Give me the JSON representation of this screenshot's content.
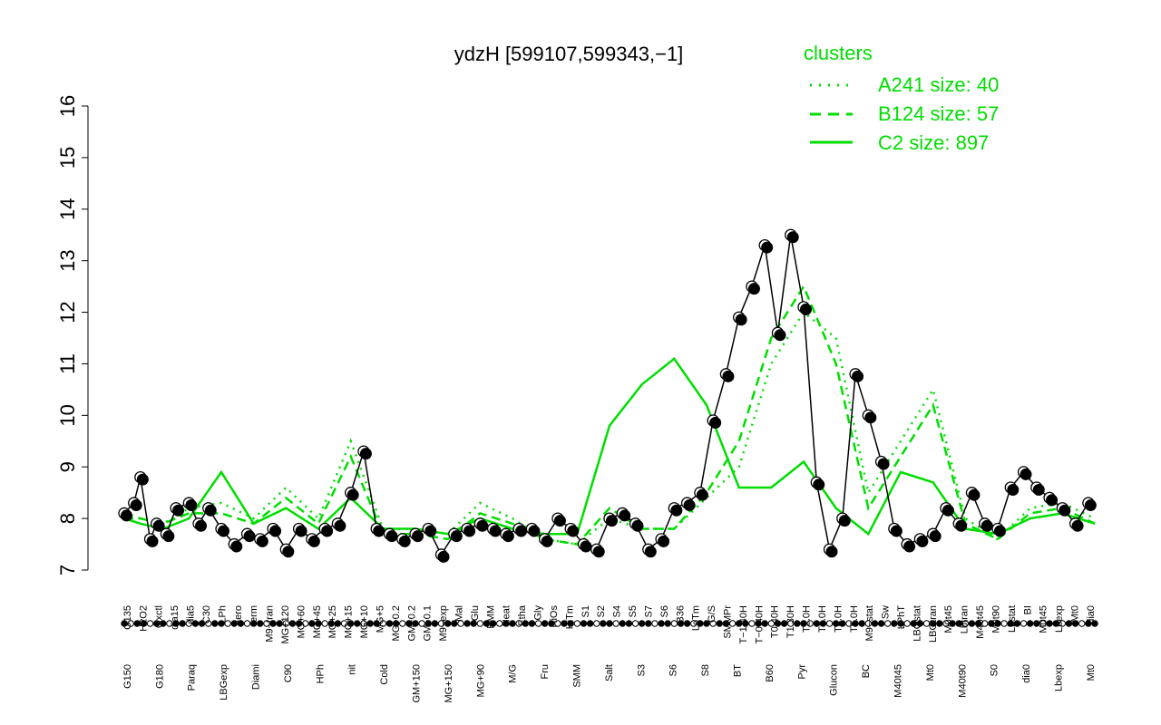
{
  "chart_data": {
    "type": "line",
    "title": "ydzH [599107,599343,−1]",
    "ylim": [
      7,
      16
    ],
    "yticks": [
      "7",
      "8",
      "9",
      "10",
      "11",
      "12",
      "13",
      "14",
      "15",
      "16"
    ],
    "yticks_values": [
      7,
      8,
      9,
      10,
      11,
      12,
      13,
      14,
      15,
      16
    ],
    "legend": {
      "title": "clusters",
      "placement": "top-right",
      "entries": [
        "A241 size: 40",
        "B124 size: 57",
        "C2 size: 897"
      ],
      "color": "#00dd00"
    },
    "categories_upper": [
      "G135",
      "H2O2",
      "Oxctl",
      "dia15",
      "dia5",
      "C30",
      "LPh",
      "aero",
      "ferm",
      "M9−tran",
      "MG+120",
      "MG+60",
      "MG+45",
      "MG+25",
      "MG+15",
      "MG+10",
      "MG+5",
      "MG−0.2",
      "GM−0.2",
      "GM−0.1",
      "M9−exp",
      "Mal",
      "Glu",
      "BMM",
      "Heat",
      "Etha",
      "Gly",
      "HiOs",
      "HiTm",
      "S1",
      "S2",
      "S4",
      "S5",
      "S7",
      "S6",
      "B36",
      "LoTm",
      "G/S",
      "SMMPr",
      "T−1.40H",
      "T−0.40H",
      "T0.40H",
      "T1.30H",
      "T2.0H",
      "T3.0H",
      "T4.0H",
      "T5.0H",
      "M9−stat",
      "Sw",
      "LPhT",
      "LBGstat",
      "LBGtran",
      "M0t45",
      "Lbtran",
      "M40t45",
      "M0t90",
      "Lbstat",
      "BI",
      "M0t45",
      "Lbexp",
      "Mt0",
      "dia0"
    ],
    "categories_lower": [
      "G150",
      "G180",
      "Paraq",
      "LBGexp",
      "Diami",
      "C90",
      "HPh",
      "nit",
      "Cold",
      "GM+150",
      "MG+150",
      "MG+90",
      "M/G",
      "Fru",
      "SMM",
      "Salt",
      "S3",
      "S6",
      "S8",
      "BT",
      "B60",
      "Pyr",
      "Glucon",
      "BC",
      "M40t45",
      "Mt0",
      "M40t90",
      "S0",
      "dia0",
      "Lbexp",
      "Mt0"
    ],
    "series": [
      {
        "name": "A241 size: 40",
        "style": "dotted",
        "x": [
          0,
          5,
          12,
          20,
          30,
          40,
          50,
          60,
          70,
          80,
          90,
          100,
          110,
          120,
          130,
          140,
          150,
          160,
          170,
          180,
          190,
          200,
          210,
          220,
          230,
          240,
          250,
          260,
          270,
          280,
          290,
          300
        ],
        "values": [
          8.1,
          8.0,
          7.9,
          8.2,
          8.3,
          8.0,
          8.6,
          8.0,
          9.5,
          7.8,
          7.8,
          7.7,
          8.3,
          8.0,
          7.6,
          7.5,
          8.0,
          7.8,
          7.8,
          8.4,
          9.0,
          11.0,
          12.0,
          11.5,
          8.5,
          9.5,
          10.5,
          8.0,
          7.6,
          8.2,
          8.3,
          8.0
        ]
      },
      {
        "name": "B124 size: 57",
        "style": "dashed",
        "x": [
          0,
          5,
          12,
          20,
          30,
          40,
          50,
          60,
          70,
          80,
          90,
          100,
          110,
          120,
          130,
          140,
          150,
          160,
          170,
          180,
          190,
          200,
          210,
          220,
          230,
          240,
          250,
          260,
          270,
          280,
          290,
          300
        ],
        "values": [
          8.0,
          8.0,
          7.9,
          8.1,
          8.1,
          7.9,
          8.4,
          7.9,
          9.2,
          7.7,
          7.7,
          7.6,
          8.1,
          7.9,
          7.6,
          7.5,
          8.2,
          7.8,
          7.8,
          8.5,
          9.5,
          11.5,
          12.5,
          11.0,
          8.2,
          9.2,
          10.2,
          7.9,
          7.6,
          8.1,
          8.2,
          7.9
        ]
      },
      {
        "name": "C2 size: 897",
        "style": "solid",
        "x": [
          0,
          5,
          12,
          20,
          30,
          40,
          50,
          60,
          70,
          80,
          90,
          100,
          110,
          120,
          130,
          140,
          150,
          160,
          170,
          180,
          190,
          200,
          210,
          220,
          230,
          240,
          250,
          260,
          270,
          280,
          290,
          300
        ],
        "values": [
          8.0,
          7.9,
          7.8,
          8.0,
          8.9,
          7.9,
          8.2,
          7.8,
          8.4,
          7.8,
          7.8,
          7.7,
          8.0,
          7.8,
          7.7,
          7.7,
          9.8,
          10.6,
          11.1,
          10.2,
          8.6,
          8.6,
          9.1,
          8.2,
          7.7,
          8.9,
          8.7,
          7.8,
          7.7,
          8.0,
          8.1,
          7.9
        ]
      }
    ],
    "points": {
      "x": [
        0,
        3,
        5,
        8,
        10,
        13,
        16,
        20,
        23,
        26,
        30,
        34,
        38,
        42,
        46,
        50,
        54,
        58,
        62,
        66,
        70,
        74,
        78,
        82,
        86,
        90,
        94,
        98,
        102,
        106,
        110,
        114,
        118,
        122,
        126,
        130,
        134,
        138,
        142,
        146,
        150,
        154,
        158,
        162,
        166,
        170,
        174,
        178,
        182,
        186,
        190,
        194,
        198,
        202,
        206,
        210,
        214,
        218,
        222,
        226,
        230,
        234,
        238,
        242,
        246,
        250,
        254,
        258,
        262,
        266,
        270,
        274,
        278,
        282,
        286,
        290,
        294,
        298
      ],
      "values": [
        8.1,
        8.3,
        8.8,
        7.6,
        7.9,
        7.7,
        8.2,
        8.3,
        7.9,
        8.2,
        7.8,
        7.5,
        7.7,
        7.6,
        7.8,
        7.4,
        7.8,
        7.6,
        7.8,
        7.9,
        8.5,
        9.3,
        7.8,
        7.7,
        7.6,
        7.7,
        7.8,
        7.3,
        7.7,
        7.8,
        7.9,
        7.8,
        7.7,
        7.8,
        7.8,
        7.6,
        8.0,
        7.8,
        7.5,
        7.4,
        8.0,
        8.1,
        7.9,
        7.4,
        7.6,
        8.2,
        8.3,
        8.5,
        9.9,
        10.8,
        11.9,
        12.5,
        13.3,
        11.6,
        13.5,
        12.1,
        8.7,
        7.4,
        8.0,
        10.8,
        10.0,
        9.1,
        7.8,
        7.5,
        7.6,
        7.7,
        8.2,
        7.9,
        8.5,
        7.9,
        7.8,
        8.6,
        8.9,
        8.6,
        8.4,
        8.2,
        7.9,
        8.3
      ]
    }
  }
}
